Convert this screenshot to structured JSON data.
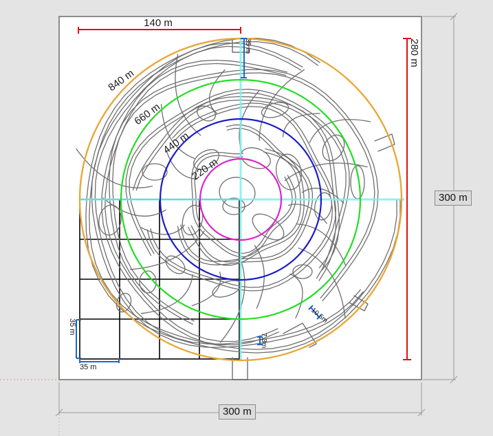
{
  "diagram": {
    "dimensions": {
      "width": "300 m",
      "height": "300 m",
      "span_140": "140 m",
      "span_280": "280 m"
    },
    "rings": [
      {
        "label": "840 m",
        "color": "#e8a83a"
      },
      {
        "label": "660 m",
        "color": "#22dd22"
      },
      {
        "label": "440 m",
        "color": "#1a1acc"
      },
      {
        "label": "220 m",
        "color": "#dd22cc"
      }
    ],
    "small_labels": {
      "grid_h": "35 m",
      "grid_v": "35 m",
      "top_gap": "35 m",
      "gap_73": "7.3m",
      "gap_105": "10.5m"
    },
    "colors": {
      "axis_cyan": "#7ff0f0",
      "dim_red": "#dd1111",
      "dim_blue": "#1a66cc",
      "maze_stroke": "#6e6e6e"
    }
  }
}
